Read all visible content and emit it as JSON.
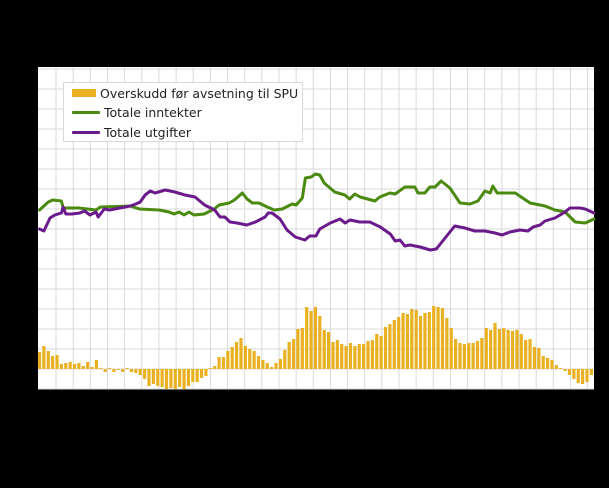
{
  "chart_data": {
    "type": "bar+line",
    "title": "",
    "xlabel": "",
    "ylabel": "",
    "note": "Axis tick labels are not visible in the image (rendered black on black). Values are read in grid units where one horizontal gridline step = 10.",
    "grid": true,
    "y_gridline_step": 10,
    "ylim": [
      -10,
      150
    ],
    "x_count": 127,
    "legend_position": "top-left inside plot",
    "legend": [
      {
        "label": "Overskudd før avsetning til SPU",
        "type": "bar",
        "color": "#E9B121"
      },
      {
        "label": "Totale inntekter",
        "type": "line",
        "color": "#4B8A10"
      },
      {
        "label": "Totale utgifter",
        "type": "line",
        "color": "#6B1A8C"
      }
    ],
    "series": [
      {
        "name": "Overskudd før avsetning til SPU",
        "type": "bar",
        "color": "#E9B121",
        "values": [
          8.5,
          11.5,
          9,
          6.5,
          7,
          2.5,
          3,
          3.5,
          2.5,
          3,
          1.5,
          3.5,
          1,
          4.5,
          0.5,
          -1.5,
          0.5,
          -1.5,
          -0.5,
          -1.5,
          0.5,
          -1.5,
          -2,
          -3,
          -5,
          -8.5,
          -7.5,
          -8.5,
          -9,
          -10,
          -9.5,
          -10,
          -9,
          -10,
          -8.5,
          -6.5,
          -6.5,
          -4.5,
          -3.5,
          0.5,
          1.5,
          6,
          6,
          9,
          11,
          13.5,
          15.5,
          11.5,
          10,
          9,
          6.5,
          4.5,
          3,
          1,
          3,
          5,
          9.5,
          13.5,
          15,
          20,
          20.5,
          31,
          29,
          31,
          26.5,
          19.5,
          18.5,
          13.5,
          14.5,
          12.5,
          11.5,
          13,
          11.5,
          12.5,
          12.5,
          14,
          14.5,
          17.5,
          16.5,
          21,
          22.5,
          24.5,
          26,
          28,
          27.5,
          30,
          29.5,
          26.5,
          28,
          28.5,
          31.5,
          31,
          30.5,
          25.5,
          20.5,
          15,
          13,
          12.5,
          13,
          13,
          14,
          15.5,
          20.5,
          19.5,
          23,
          20,
          20.5,
          19.5,
          19,
          19.5,
          17.5,
          14.5,
          15,
          11,
          10.5,
          6.5,
          5.5,
          4.5,
          2,
          0.5,
          -1,
          -3,
          -5,
          -7,
          -7.5,
          -6.5,
          -3
        ]
      },
      {
        "name": "Totale inntekter",
        "type": "line",
        "color": "#4B8A10",
        "points": [
          [
            0,
            79.5
          ],
          [
            2,
            83.5
          ],
          [
            3,
            84.5
          ],
          [
            5,
            84
          ],
          [
            5.4,
            80.5
          ],
          [
            9,
            80.5
          ],
          [
            12.9,
            79.5
          ],
          [
            13.9,
            81
          ],
          [
            20.7,
            81.5
          ],
          [
            22.8,
            80
          ],
          [
            27.3,
            79.5
          ],
          [
            29.6,
            78.5
          ],
          [
            30.7,
            77.5
          ],
          [
            31.9,
            78.5
          ],
          [
            33,
            77
          ],
          [
            34.1,
            78.5
          ],
          [
            35.3,
            77
          ],
          [
            37.6,
            77.5
          ],
          [
            39.9,
            80
          ],
          [
            41,
            82
          ],
          [
            43.3,
            83
          ],
          [
            44.5,
            84.5
          ],
          [
            46.3,
            88
          ],
          [
            47.4,
            85
          ],
          [
            48.6,
            83
          ],
          [
            50.1,
            83
          ],
          [
            52,
            81
          ],
          [
            53.6,
            79.5
          ],
          [
            55.4,
            80
          ],
          [
            57.7,
            82.5
          ],
          [
            58.6,
            82
          ],
          [
            60,
            85.5
          ],
          [
            60.7,
            95.5
          ],
          [
            62,
            96
          ],
          [
            63,
            97.5
          ],
          [
            64,
            97
          ],
          [
            65,
            93
          ],
          [
            67.4,
            88.5
          ],
          [
            69.7,
            87
          ],
          [
            70.8,
            85
          ],
          [
            72,
            87.5
          ],
          [
            73.2,
            86
          ],
          [
            76.6,
            84
          ],
          [
            77.7,
            86
          ],
          [
            80,
            88
          ],
          [
            81.2,
            87.5
          ],
          [
            83.4,
            91
          ],
          [
            85.7,
            91
          ],
          [
            86.4,
            88
          ],
          [
            88,
            88
          ],
          [
            89.1,
            91
          ],
          [
            90.3,
            91
          ],
          [
            91.7,
            94
          ],
          [
            93.7,
            90.5
          ],
          [
            96,
            83
          ],
          [
            98.3,
            82.5
          ],
          [
            100.1,
            84
          ],
          [
            101.7,
            89
          ],
          [
            102.9,
            88
          ],
          [
            103.5,
            91.5
          ],
          [
            104.5,
            88
          ],
          [
            108.6,
            88
          ],
          [
            112,
            83
          ],
          [
            115.4,
            81.5
          ],
          [
            117.7,
            79.5
          ],
          [
            120,
            78.5
          ],
          [
            122.3,
            73.5
          ],
          [
            124.6,
            73
          ],
          [
            126.6,
            75
          ]
        ]
      },
      {
        "name": "Totale utgifter",
        "type": "line",
        "color": "#6B1A8C",
        "points": [
          [
            0,
            70
          ],
          [
            1,
            69
          ],
          [
            2.4,
            75.5
          ],
          [
            3.5,
            77
          ],
          [
            5,
            78
          ],
          [
            5.4,
            81
          ],
          [
            6,
            77.5
          ],
          [
            7.4,
            77.5
          ],
          [
            9.2,
            78
          ],
          [
            10.3,
            79
          ],
          [
            11.5,
            77
          ],
          [
            12.9,
            78.5
          ],
          [
            13.4,
            76
          ],
          [
            14.8,
            80
          ],
          [
            16,
            79.5
          ],
          [
            18.3,
            80.5
          ],
          [
            20.7,
            81.5
          ],
          [
            22,
            82.5
          ],
          [
            23,
            83.5
          ],
          [
            24.1,
            87
          ],
          [
            25.3,
            89
          ],
          [
            26.4,
            88
          ],
          [
            28.7,
            89.5
          ],
          [
            30.9,
            88.5
          ],
          [
            33.2,
            87
          ],
          [
            35.5,
            86
          ],
          [
            37.7,
            82
          ],
          [
            40,
            79.5
          ],
          [
            41.2,
            76
          ],
          [
            42.3,
            76
          ],
          [
            43.5,
            73.5
          ],
          [
            45.1,
            73
          ],
          [
            47.3,
            72
          ],
          [
            49.3,
            73.5
          ],
          [
            51.5,
            76
          ],
          [
            52.2,
            78
          ],
          [
            53.1,
            78
          ],
          [
            54.9,
            75
          ],
          [
            56.5,
            69.5
          ],
          [
            58.4,
            66
          ],
          [
            60.6,
            64.5
          ],
          [
            61.7,
            66.5
          ],
          [
            63.1,
            66.5
          ],
          [
            64,
            70
          ],
          [
            66.4,
            73
          ],
          [
            68.6,
            75
          ],
          [
            69.8,
            73
          ],
          [
            70.9,
            74.5
          ],
          [
            73.1,
            73.5
          ],
          [
            75.4,
            73.5
          ],
          [
            77.8,
            71
          ],
          [
            80.1,
            67.5
          ],
          [
            81.2,
            64
          ],
          [
            82.3,
            64.5
          ],
          [
            83.4,
            61.5
          ],
          [
            84.6,
            62
          ],
          [
            85.7,
            61.5
          ],
          [
            86.9,
            61
          ],
          [
            89.2,
            59.5
          ],
          [
            90.6,
            60
          ],
          [
            91.5,
            62.5
          ],
          [
            93.7,
            68.5
          ],
          [
            94.8,
            71.5
          ],
          [
            97.1,
            70.5
          ],
          [
            99.4,
            69
          ],
          [
            101.7,
            69
          ],
          [
            104,
            68
          ],
          [
            105.6,
            67
          ],
          [
            107.4,
            68.5
          ],
          [
            109.7,
            69.5
          ],
          [
            111.5,
            69
          ],
          [
            112.7,
            71
          ],
          [
            114.3,
            72
          ],
          [
            115.4,
            74
          ],
          [
            117.7,
            75.5
          ],
          [
            120,
            78.5
          ],
          [
            121.1,
            80.5
          ],
          [
            123.4,
            80.5
          ],
          [
            124.6,
            80
          ],
          [
            126.6,
            78
          ]
        ]
      }
    ]
  },
  "legend": {
    "items": [
      {
        "label": "Overskudd før avsetning til SPU"
      },
      {
        "label": "Totale inntekter"
      },
      {
        "label": "Totale utgifter"
      }
    ]
  },
  "colors": {
    "background": "#000000",
    "plot_background": "#FFFFFF",
    "grid": "#D9D9D9",
    "surplus": "#E9B121",
    "income": "#4B8A10",
    "expenses": "#6B1A8C"
  }
}
